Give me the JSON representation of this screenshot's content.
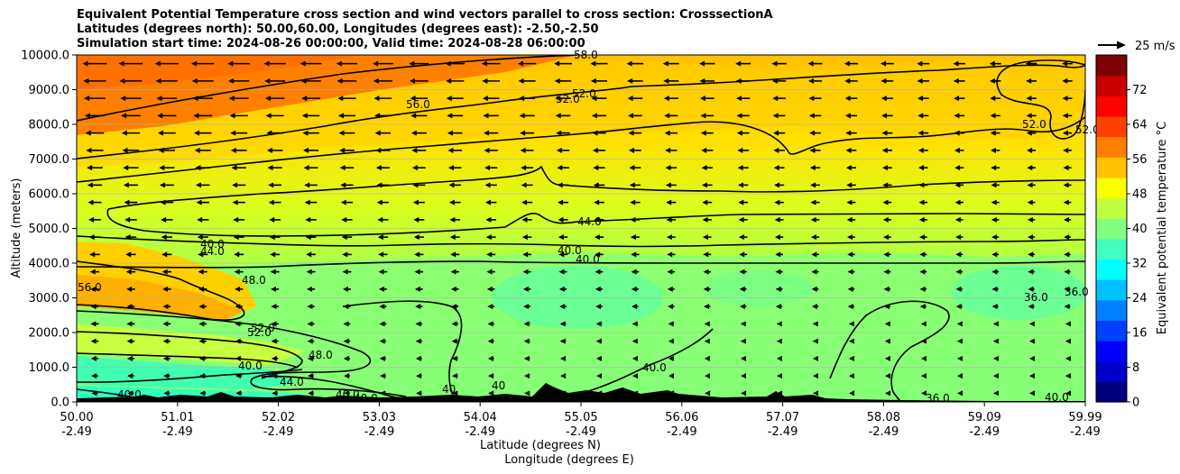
{
  "chart_data": {
    "type": "heatmap",
    "title_lines": [
      "Equivalent Potential Temperature cross section and wind vectors parallel to cross section: CrosssectionA",
      "Latitudes (degrees north): 50.00,60.00, Longitudes (degrees east): -2.50,-2.50",
      "Simulation start time: 2024-08-26 00:00:00, Valid time: 2024-08-28 06:00:00"
    ],
    "ylabel": "Altitude (meters)",
    "xlabel_lat": "Latitude (degrees N)",
    "xlabel_lon": "Longitude (degrees E)",
    "ylim": [
      0,
      10000
    ],
    "y_ticks": [
      0,
      1000,
      2000,
      3000,
      4000,
      5000,
      6000,
      7000,
      8000,
      9000,
      10000
    ],
    "y_tick_labels": [
      "0.0",
      "1000.0",
      "2000.0",
      "3000.0",
      "4000.0",
      "5000.0",
      "6000.0",
      "7000.0",
      "8000.0",
      "9000.0",
      "10000.0"
    ],
    "x_tick_lat": [
      "50.00",
      "51.01",
      "52.02",
      "53.03",
      "54.04",
      "55.05",
      "56.06",
      "57.07",
      "58.08",
      "59.09",
      "59.99"
    ],
    "x_tick_lon": [
      "-2.49",
      "-2.49",
      "-2.49",
      "-2.49",
      "-2.49",
      "-2.49",
      "-2.49",
      "-2.49",
      "-2.49",
      "-2.49",
      "-2.49"
    ],
    "grid": true,
    "colorbar": {
      "label": "Equivalent potential temperature °C",
      "range": [
        0,
        80
      ],
      "ticks": [
        "0",
        "8",
        "16",
        "24",
        "32",
        "40",
        "48",
        "56",
        "64",
        "72"
      ],
      "colors": [
        "#00007f",
        "#0000c8",
        "#0000ff",
        "#0040ff",
        "#0080ff",
        "#00c0ff",
        "#00ffff",
        "#40ffc0",
        "#80ff80",
        "#c0ff40",
        "#ffff00",
        "#ffc000",
        "#ff8000",
        "#ff4000",
        "#ff0000",
        "#c80000",
        "#7f0000"
      ]
    },
    "wind_reference": {
      "label": "25 m/s",
      "speed": 25
    },
    "contour_labels": [
      "58.0",
      "56.0",
      "52.0",
      "52.0",
      "52.0",
      "52.0",
      "44.0",
      "44.0",
      "40.0",
      "40.0",
      "48.0",
      "56.0",
      "52.0",
      "52.0",
      "48.0",
      "40.0",
      "44.0",
      "40.0",
      "40.0",
      "40.0",
      "40.0",
      "40",
      "40",
      "40.0",
      "36.0",
      "36.0",
      "36.0",
      "40.0"
    ],
    "contour_levels": [
      36,
      40,
      44,
      48,
      52,
      56
    ],
    "field_bands": [
      {
        "altitude": [
          0,
          2000
        ],
        "theta_e": "38-44"
      },
      {
        "altitude": [
          2000,
          4000
        ],
        "theta_e": "40-48"
      },
      {
        "altitude": [
          4000,
          6500
        ],
        "theta_e": "44-50"
      },
      {
        "altitude": [
          6500,
          8500
        ],
        "theta_e": "50-56"
      },
      {
        "altitude": [
          8500,
          10000
        ],
        "theta_e": "54-62"
      }
    ]
  }
}
